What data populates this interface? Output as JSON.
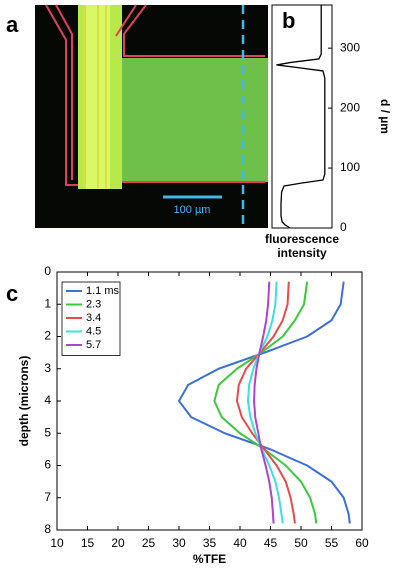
{
  "panel_a": {
    "label": "a",
    "scale_bar": "100 µm"
  },
  "chart_data": [
    {
      "type": "line",
      "panel_label": "b",
      "ylabel": "d / µm",
      "xlabel": [
        "fluorescence",
        "intensity"
      ],
      "xlim": [
        0,
        1
      ],
      "ylim": [
        0,
        372
      ],
      "yticks": [
        0,
        100,
        200,
        300
      ],
      "y_axis_side": "right",
      "y_inverted": false,
      "depth": [
        0,
        5,
        10,
        20,
        40,
        60,
        70,
        75,
        80,
        90,
        150,
        200,
        250,
        262,
        268,
        272,
        276,
        282,
        290,
        320,
        360,
        372
      ],
      "series": [
        {
          "color": "#000000",
          "values": [
            0.3,
            0.22,
            0.17,
            0.15,
            0.15,
            0.16,
            0.2,
            0.5,
            0.85,
            0.88,
            0.88,
            0.88,
            0.88,
            0.85,
            0.4,
            0.08,
            0.3,
            0.78,
            0.82,
            0.82,
            0.82,
            0.82
          ]
        }
      ]
    },
    {
      "type": "line",
      "panel_label": "c",
      "xlabel": "%TFE",
      "ylabel": "depth (microns)",
      "xlim": [
        10,
        60
      ],
      "xticks": [
        10,
        15,
        20,
        25,
        30,
        35,
        40,
        45,
        50,
        55,
        60
      ],
      "ylim": [
        0,
        8
      ],
      "yticks": [
        0,
        1,
        2,
        3,
        4,
        5,
        6,
        7,
        8
      ],
      "y_axis_side": "left",
      "y_inverted": true,
      "legend": "upper left",
      "depth": [
        0.3,
        1,
        1.5,
        2,
        2.5,
        3,
        3.5,
        4,
        4.5,
        5,
        5.5,
        6,
        6.5,
        7,
        7.5,
        7.8
      ],
      "series": [
        {
          "name": "1.1 ms",
          "color": "#3d6fd8",
          "values": [
            57,
            56.5,
            55,
            51,
            44,
            36.5,
            31.5,
            30,
            32,
            37.5,
            45,
            51,
            55,
            57,
            57.8,
            58
          ]
        },
        {
          "name": "2.3",
          "color": "#3cc83c",
          "values": [
            51,
            50.5,
            49,
            47,
            43.5,
            39.5,
            36.5,
            35.8,
            37,
            40,
            44,
            47.5,
            50,
            51.5,
            52.3,
            52.5
          ]
        },
        {
          "name": "3.4",
          "color": "#e84a4a",
          "values": [
            48,
            47.8,
            47,
            45.5,
            43.3,
            41,
            39.8,
            39.5,
            40.3,
            42,
            44,
            46,
            47.5,
            48.3,
            48.8,
            49
          ]
        },
        {
          "name": "4.5",
          "color": "#3fdede",
          "values": [
            46,
            45.8,
            45.3,
            44.5,
            43.2,
            42.2,
            41.5,
            41.3,
            41.7,
            42.5,
            43.6,
            44.8,
            45.8,
            46.4,
            46.8,
            47
          ]
        },
        {
          "name": "5.7",
          "color": "#b042d0",
          "values": [
            44.8,
            44.6,
            44.3,
            43.8,
            43.2,
            42.7,
            42.4,
            42.3,
            42.5,
            43,
            43.5,
            44.2,
            44.8,
            45.2,
            45.4,
            45.5
          ]
        }
      ]
    }
  ]
}
